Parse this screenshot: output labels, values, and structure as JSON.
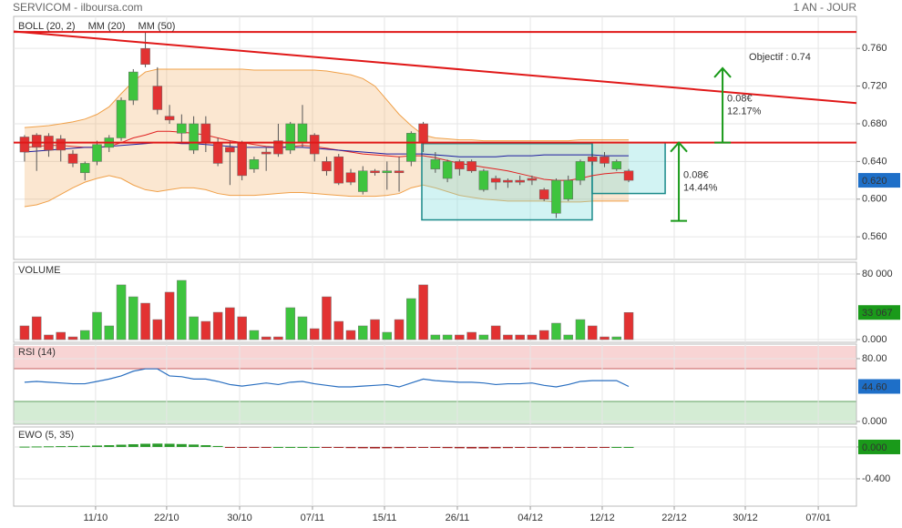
{
  "header": {
    "title": "SERVICOM - ilboursa.com",
    "period": "1 AN - JOUR"
  },
  "chart_data": [
    {
      "type": "candlestick",
      "xlim": [
        -0.9,
        68.85
      ],
      "xticks": [
        {
          "value": 5.88,
          "label": "11/10"
        },
        {
          "value": 11.76,
          "label": "22/10"
        },
        {
          "value": 17.8,
          "label": "30/10"
        },
        {
          "value": 23.83,
          "label": "07/11"
        },
        {
          "value": 29.79,
          "label": "15/11"
        },
        {
          "value": 35.82,
          "label": "26/11"
        },
        {
          "value": 41.86,
          "label": "04/12"
        },
        {
          "value": 47.81,
          "label": "12/12"
        },
        {
          "value": 53.77,
          "label": "22/12"
        },
        {
          "value": 59.65,
          "label": "30/12"
        },
        {
          "value": 65.69,
          "label": "07/01"
        }
      ],
      "ylim": [
        0.536,
        0.794
      ],
      "yticks": [
        {
          "value": 0.56,
          "label": "0.560"
        },
        {
          "value": 0.6,
          "label": "0.600"
        },
        {
          "value": 0.64,
          "label": "0.640"
        },
        {
          "value": 0.68,
          "label": "0.680"
        },
        {
          "value": 0.72,
          "label": "0.720"
        },
        {
          "value": 0.76,
          "label": "0.760"
        }
      ],
      "up_color": "#3ec43e",
      "down_color": "#e23232",
      "open": [
        0.666,
        0.668,
        0.667,
        0.664,
        0.648,
        0.628,
        0.64,
        0.655,
        0.665,
        0.705,
        0.76,
        0.72,
        0.688,
        0.67,
        0.652,
        0.68,
        0.66,
        0.655,
        0.66,
        0.632,
        0.65,
        0.662,
        0.652,
        0.66,
        0.668,
        0.64,
        0.645,
        0.628,
        0.608,
        0.63,
        0.628,
        0.63,
        0.64,
        0.68,
        0.632,
        0.622,
        0.64,
        0.64,
        0.61,
        0.622,
        0.62,
        0.62,
        0.622,
        0.61,
        0.585,
        0.6,
        0.62,
        0.645,
        0.645,
        0.632,
        0.63
      ],
      "high": [
        0.668,
        0.67,
        0.67,
        0.668,
        0.652,
        0.64,
        0.662,
        0.668,
        0.708,
        0.738,
        0.778,
        0.74,
        0.7,
        0.69,
        0.688,
        0.688,
        0.665,
        0.662,
        0.662,
        0.645,
        0.655,
        0.68,
        0.682,
        0.7,
        0.67,
        0.645,
        0.648,
        0.632,
        0.635,
        0.632,
        0.64,
        0.645,
        0.672,
        0.682,
        0.65,
        0.642,
        0.642,
        0.642,
        0.632,
        0.625,
        0.622,
        0.625,
        0.625,
        0.612,
        0.622,
        0.625,
        0.642,
        0.648,
        0.65,
        0.642,
        0.632
      ],
      "low": [
        0.64,
        0.63,
        0.645,
        0.64,
        0.634,
        0.62,
        0.636,
        0.65,
        0.662,
        0.7,
        0.74,
        0.69,
        0.68,
        0.66,
        0.648,
        0.65,
        0.635,
        0.615,
        0.62,
        0.628,
        0.63,
        0.645,
        0.648,
        0.655,
        0.64,
        0.625,
        0.615,
        0.615,
        0.605,
        0.625,
        0.61,
        0.608,
        0.635,
        0.65,
        0.628,
        0.618,
        0.625,
        0.628,
        0.608,
        0.61,
        0.612,
        0.615,
        0.615,
        0.598,
        0.58,
        0.598,
        0.615,
        0.636,
        0.634,
        0.63,
        0.618
      ],
      "close": [
        0.65,
        0.655,
        0.652,
        0.652,
        0.638,
        0.638,
        0.658,
        0.665,
        0.705,
        0.735,
        0.743,
        0.695,
        0.684,
        0.68,
        0.68,
        0.66,
        0.638,
        0.65,
        0.625,
        0.642,
        0.648,
        0.648,
        0.68,
        0.68,
        0.648,
        0.63,
        0.617,
        0.618,
        0.63,
        0.628,
        0.63,
        0.628,
        0.67,
        0.66,
        0.642,
        0.64,
        0.632,
        0.63,
        0.63,
        0.618,
        0.618,
        0.618,
        0.62,
        0.6,
        0.62,
        0.62,
        0.64,
        0.64,
        0.638,
        0.64,
        0.62
      ],
      "overlays": [
        {
          "name": "BOLL (20, 2)",
          "color": "#f0a048",
          "upper": [
            0.676,
            0.677,
            0.678,
            0.68,
            0.682,
            0.685,
            0.69,
            0.698,
            0.712,
            0.725,
            0.735,
            0.738,
            0.738,
            0.738,
            0.738,
            0.738,
            0.738,
            0.738,
            0.738,
            0.737,
            0.737,
            0.737,
            0.737,
            0.737,
            0.737,
            0.736,
            0.734,
            0.732,
            0.728,
            0.72,
            0.705,
            0.69,
            0.678,
            0.668,
            0.665,
            0.664,
            0.663,
            0.663,
            0.662,
            0.662,
            0.662,
            0.662,
            0.662,
            0.662,
            0.662,
            0.662,
            0.663,
            0.663,
            0.663,
            0.663,
            0.663
          ],
          "lower": [
            0.592,
            0.594,
            0.598,
            0.605,
            0.612,
            0.618,
            0.622,
            0.625,
            0.622,
            0.615,
            0.61,
            0.608,
            0.61,
            0.612,
            0.612,
            0.61,
            0.606,
            0.604,
            0.604,
            0.604,
            0.605,
            0.606,
            0.607,
            0.607,
            0.606,
            0.605,
            0.604,
            0.603,
            0.603,
            0.603,
            0.604,
            0.606,
            0.612,
            0.615,
            0.612,
            0.608,
            0.604,
            0.602,
            0.6,
            0.599,
            0.598,
            0.598,
            0.598,
            0.598,
            0.597,
            0.597,
            0.597,
            0.598,
            0.598,
            0.598,
            0.598
          ]
        },
        {
          "name": "MM (20)",
          "color": "#e02020",
          "values": [
            0.655,
            0.656,
            0.657,
            0.657,
            0.656,
            0.655,
            0.655,
            0.656,
            0.66,
            0.665,
            0.668,
            0.672,
            0.672,
            0.671,
            0.67,
            0.668,
            0.665,
            0.662,
            0.66,
            0.658,
            0.656,
            0.655,
            0.656,
            0.657,
            0.656,
            0.654,
            0.652,
            0.65,
            0.648,
            0.647,
            0.646,
            0.645,
            0.646,
            0.646,
            0.644,
            0.641,
            0.638,
            0.636,
            0.634,
            0.632,
            0.63,
            0.627,
            0.624,
            0.621,
            0.62,
            0.62,
            0.622,
            0.625,
            0.627,
            0.628,
            0.628
          ]
        },
        {
          "name": "MM (50)",
          "color": "#1c1ca0",
          "values": [
            0.65,
            0.651,
            0.652,
            0.653,
            0.654,
            0.655,
            0.655,
            0.656,
            0.657,
            0.658,
            0.659,
            0.66,
            0.66,
            0.659,
            0.659,
            0.658,
            0.657,
            0.656,
            0.655,
            0.655,
            0.655,
            0.655,
            0.655,
            0.655,
            0.654,
            0.653,
            0.652,
            0.651,
            0.65,
            0.649,
            0.648,
            0.648,
            0.648,
            0.648,
            0.647,
            0.646,
            0.645,
            0.645,
            0.645,
            0.645,
            0.646,
            0.646,
            0.646,
            0.647,
            0.647,
            0.647,
            0.647,
            0.647,
            0.646,
            0.646,
            0.646
          ]
        }
      ],
      "lines": [
        {
          "x": [
            -0.9,
            68.85
          ],
          "y": [
            0.7775,
            0.7775
          ],
          "color": "#e01818"
        },
        {
          "x": [
            -0.9,
            68.85
          ],
          "y": [
            0.778,
            0.702
          ],
          "color": "#e01818"
        },
        {
          "x": [
            -0.9,
            68.85
          ],
          "y": [
            0.66,
            0.66
          ],
          "color": "#e01818"
        }
      ],
      "boxes": [
        {
          "x": [
            32.88,
            46.98
          ],
          "y": [
            0.578,
            0.659
          ]
        },
        {
          "x": [
            46.98,
            53.02
          ],
          "y": [
            0.606,
            0.66
          ]
        }
      ],
      "arrows": [
        {
          "x": 57.77,
          "y": [
            0.66,
            0.739
          ],
          "labels": [
            "0.08€",
            "12.17%"
          ]
        },
        {
          "x": 54.15,
          "y": [
            0.577,
            0.66
          ],
          "labels": [
            "0.08€",
            "14.44%"
          ]
        }
      ],
      "target_label": "Objectif : 0.74",
      "current": {
        "value": 0.62,
        "label": "0.620",
        "color": "#1e6fc8"
      }
    },
    {
      "type": "volume",
      "label": "VOLUME",
      "label_color": "#2a9a2a",
      "ylim": [
        -3300,
        94400
      ],
      "yticks": [
        {
          "value": 0,
          "label": "0.000"
        },
        {
          "value": 80000,
          "label": "80 000"
        }
      ],
      "values": [
        16700,
        27800,
        5600,
        8900,
        3300,
        11100,
        33300,
        16700,
        66700,
        52200,
        44400,
        24400,
        57800,
        72200,
        27800,
        22200,
        33300,
        38900,
        27800,
        11100,
        3300,
        3300,
        38900,
        27800,
        13300,
        52200,
        22200,
        11100,
        16700,
        24400,
        8900,
        24400,
        50000,
        66700,
        5600,
        5600,
        5600,
        8900,
        5600,
        16700,
        5600,
        5600,
        5600,
        11100,
        20000,
        5600,
        24400,
        16700,
        3300,
        3300,
        33067
      ],
      "current": {
        "value": 33067,
        "label": "33 067",
        "color": "#1a9a1a"
      }
    },
    {
      "type": "line",
      "label": "RSI (14)",
      "label_color": "#1c4fb0",
      "color": "#2a6fc0",
      "ylim": [
        -3.5,
        98.5
      ],
      "yticks": [
        {
          "value": 0,
          "label": "0.000"
        },
        {
          "value": 80,
          "label": "80.00"
        }
      ],
      "values": [
        50,
        51,
        50,
        49,
        48,
        48,
        51,
        54,
        58,
        64,
        67,
        67,
        58,
        57,
        54,
        54,
        51,
        47,
        45,
        47,
        49,
        47,
        50,
        51,
        48,
        46,
        44,
        44,
        45,
        46,
        47,
        44,
        49,
        54,
        52,
        51,
        50,
        50,
        49,
        47,
        48,
        48,
        49,
        46,
        44,
        47,
        51,
        52,
        52,
        52,
        44.6
      ],
      "current": {
        "value": 44.6,
        "label": "44.60",
        "color": "#1e6fc8"
      }
    },
    {
      "type": "ewo",
      "label": "EWO (5, 35)",
      "label_color": "#2a9a2a",
      "up_color": "#2a9a2a",
      "down_color": "#a02020",
      "ylim": [
        -0.743,
        0.251
      ],
      "yticks": [
        {
          "value": 0,
          "label": "0.000"
        },
        {
          "value": -0.4,
          "label": "-0.400"
        }
      ],
      "values": [
        0.004,
        0.006,
        0.008,
        0.01,
        0.012,
        0.014,
        0.018,
        0.022,
        0.028,
        0.034,
        0.04,
        0.042,
        0.04,
        0.036,
        0.03,
        0.022,
        0.012,
        -0.008,
        -0.01,
        -0.01,
        -0.008,
        0,
        0,
        0,
        0,
        -0.006,
        -0.01,
        -0.014,
        -0.016,
        -0.018,
        -0.016,
        -0.014,
        -0.012,
        -0.01,
        -0.012,
        -0.014,
        -0.016,
        -0.018,
        -0.018,
        -0.016,
        -0.014,
        -0.012,
        -0.012,
        -0.014,
        -0.014,
        -0.012,
        -0.01,
        -0.008,
        -0.006,
        0,
        0
      ],
      "current": {
        "value": 0,
        "label": "0.000",
        "color": "#1a9a1a"
      }
    }
  ]
}
